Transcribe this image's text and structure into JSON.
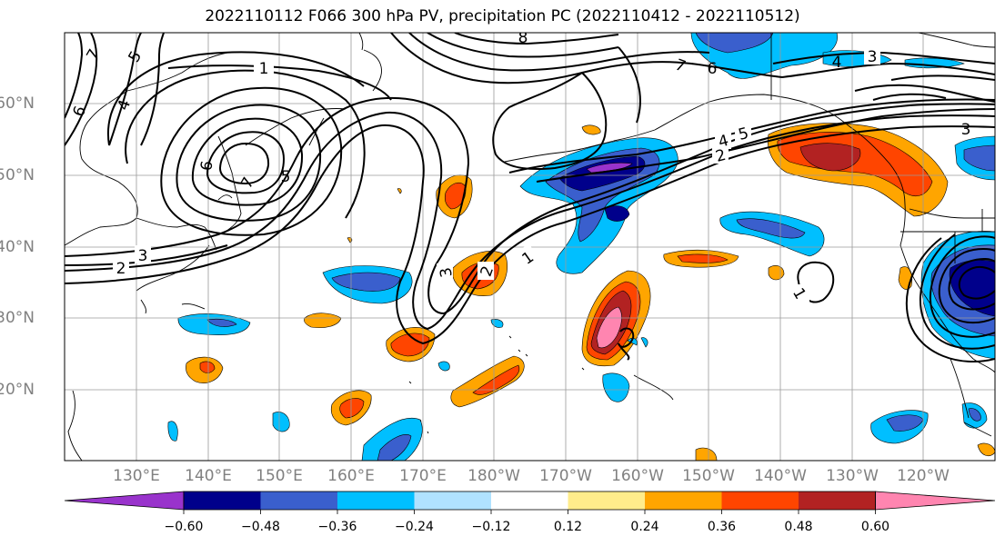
{
  "title": "2022110112 F066 300 hPa PV, precipitation PC (2022110412 - 2022110512)",
  "lat_labels": [
    "60°N",
    "50°N",
    "40°N",
    "30°N",
    "20°N"
  ],
  "lon_labels": [
    "130°E",
    "140°E",
    "150°E",
    "160°E",
    "170°E",
    "180°W",
    "170°W",
    "160°W",
    "150°W",
    "140°W",
    "130°W",
    "120°W"
  ],
  "colorbar": {
    "ticks": [
      "−0.60",
      "−0.48",
      "−0.36",
      "−0.24",
      "−0.12",
      "0.12",
      "0.24",
      "0.36",
      "0.48",
      "0.60"
    ],
    "colors": [
      "#9933cc",
      "#00008b",
      "#3a5fcd",
      "#00bfff",
      "#b0e2ff",
      "#ffffff",
      "#ffec8b",
      "#ffa500",
      "#ff4500",
      "#b22222",
      "#ff85b0"
    ]
  },
  "contour_labels": [
    "1",
    "1",
    "1",
    "2",
    "2",
    "2",
    "3",
    "3",
    "3",
    "4",
    "5",
    "5",
    "6",
    "6",
    "7",
    "7",
    "7",
    "8"
  ]
}
